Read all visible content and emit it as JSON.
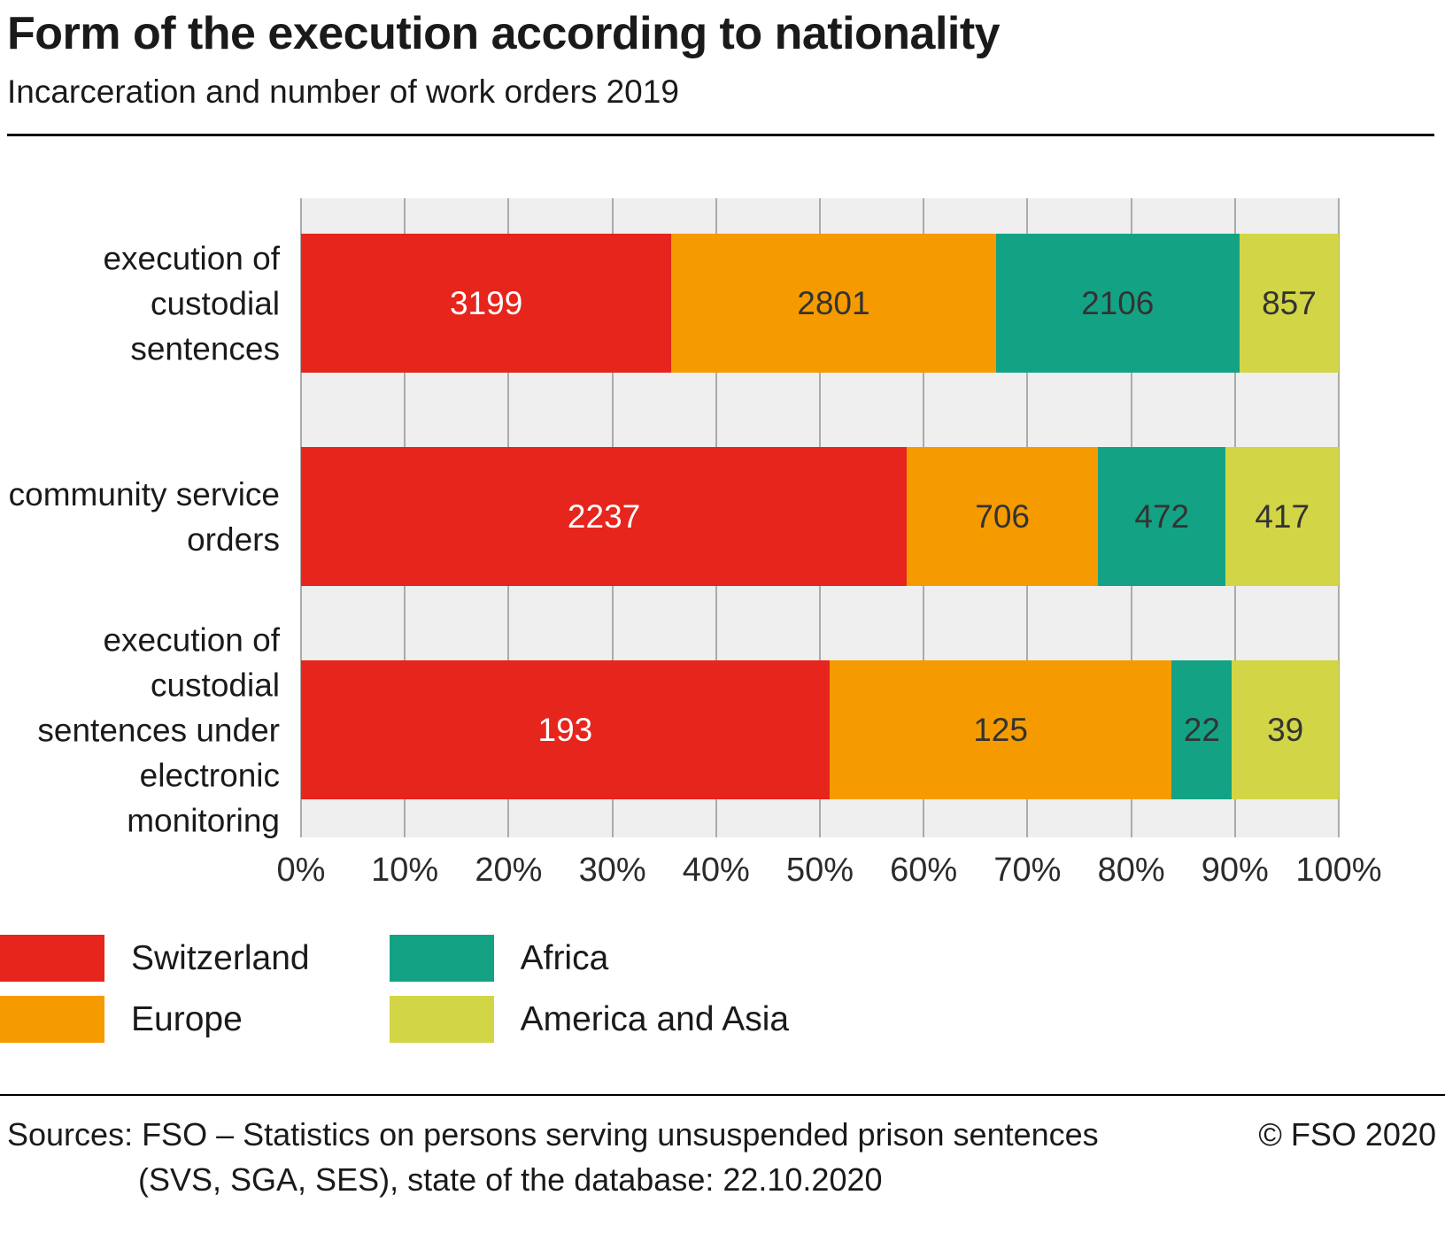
{
  "header": {
    "title": "Form of the execution according to nationality",
    "subtitle": "Incarceration and number of work orders 2019"
  },
  "chart_data": {
    "type": "bar",
    "orientation": "horizontal",
    "stacked": true,
    "normalized_to_100_percent": true,
    "grid": true,
    "plot_background": "#efefef",
    "gridline_color": "#ababab",
    "categories": [
      "execution of custodial sentences",
      "community service orders",
      "execution of custodial sentences under electronic monitoring"
    ],
    "series": [
      {
        "name": "Switzerland",
        "color": "#e6251c",
        "value_text_color": "#ffffff",
        "values": [
          3199,
          2237,
          193
        ]
      },
      {
        "name": "Europe",
        "color": "#f59b00",
        "value_text_color": "#333333",
        "values": [
          2801,
          706,
          125
        ]
      },
      {
        "name": "Africa",
        "color": "#14a285",
        "value_text_color": "#333333",
        "values": [
          2106,
          472,
          22
        ]
      },
      {
        "name": "America and Asia",
        "color": "#d2d545",
        "value_text_color": "#333333",
        "values": [
          857,
          417,
          39
        ]
      }
    ],
    "x_axis": {
      "min": 0,
      "max": 100,
      "ticks": [
        "0%",
        "10%",
        "20%",
        "30%",
        "40%",
        "50%",
        "60%",
        "70%",
        "80%",
        "90%",
        "100%"
      ]
    },
    "legend_position": "bottom-left"
  },
  "footer": {
    "sources_line1": "Sources: FSO – Statistics on persons serving unsuspended prison sentences",
    "sources_line2": "(SVS, SGA, SES), state of the database: 22.10.2020",
    "copyright": "© FSO 2020"
  }
}
